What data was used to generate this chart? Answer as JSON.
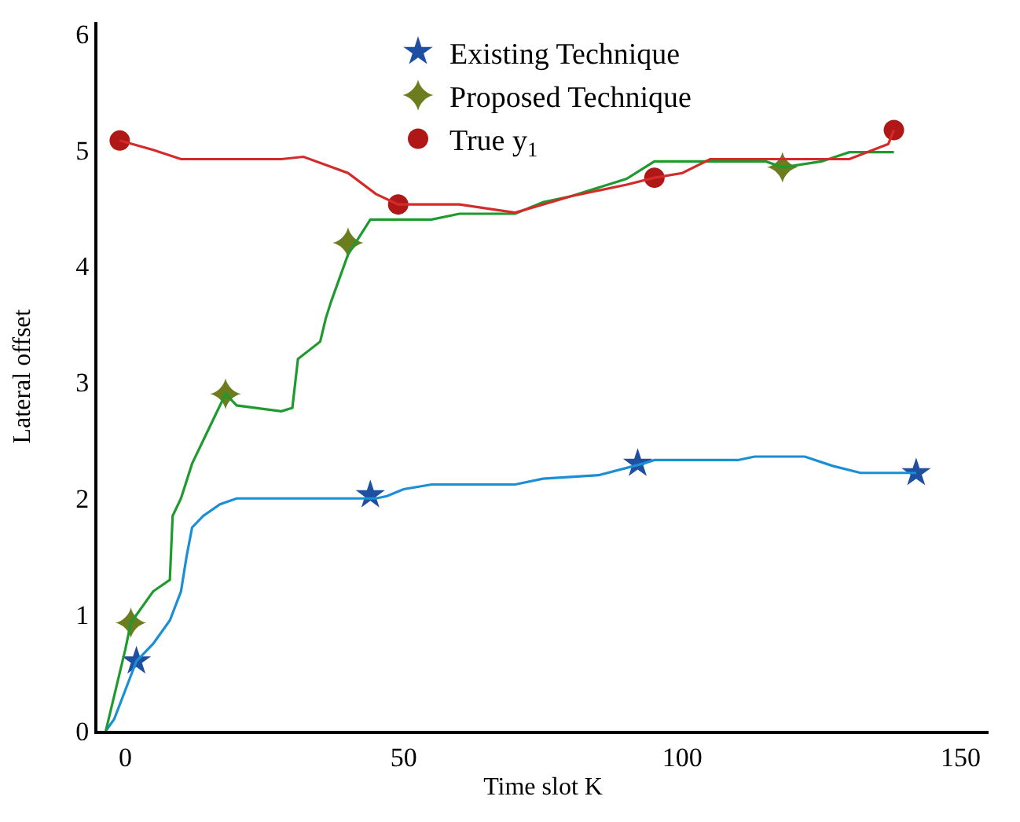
{
  "chart_data": {
    "type": "line",
    "xlabel": "Time slot K",
    "ylabel": "Lateral offset",
    "xlim": [
      -5,
      155
    ],
    "xticks": [
      0,
      50,
      100,
      150
    ],
    "ylim": [
      0,
      6.1
    ],
    "yticks": [
      0,
      1,
      2,
      3,
      4,
      5,
      6
    ],
    "grid": false,
    "legend": "top",
    "line_style": "solid",
    "series": [
      {
        "color": "#1a8fd6",
        "x": [
          -3.5,
          -2,
          0,
          2,
          5,
          8,
          10,
          11,
          12,
          14,
          17,
          20,
          45,
          47,
          50,
          55,
          70,
          75,
          85,
          93,
          95,
          110,
          113,
          122,
          127,
          132,
          142
        ],
        "values": [
          0,
          0.1,
          0.35,
          0.6,
          0.75,
          0.95,
          1.2,
          1.5,
          1.75,
          1.85,
          1.95,
          2.0,
          2.0,
          2.02,
          2.08,
          2.12,
          2.12,
          2.17,
          2.2,
          2.3,
          2.33,
          2.33,
          2.36,
          2.36,
          2.28,
          2.22,
          2.22
        ]
      },
      {
        "color": "#1e9a2e",
        "x": [
          -3.5,
          0,
          1,
          5,
          8,
          8.5,
          10,
          12,
          15,
          18,
          20,
          28,
          30,
          31,
          35,
          36,
          37,
          40,
          42,
          44,
          55,
          60,
          70,
          75,
          80,
          90,
          95,
          115,
          118,
          125,
          130,
          138
        ],
        "values": [
          0,
          0.7,
          0.93,
          1.2,
          1.3,
          1.85,
          2.0,
          2.3,
          2.6,
          2.9,
          2.8,
          2.75,
          2.78,
          3.2,
          3.35,
          3.55,
          3.7,
          4.1,
          4.25,
          4.4,
          4.4,
          4.45,
          4.45,
          4.55,
          4.6,
          4.75,
          4.9,
          4.9,
          4.85,
          4.9,
          4.98,
          4.98
        ]
      },
      {
        "color": "#d42a2a",
        "x": [
          -1,
          5,
          10,
          28,
          32,
          40,
          45,
          49,
          60,
          70,
          80,
          90,
          95,
          100,
          105,
          130,
          137,
          138
        ],
        "values": [
          5.08,
          5.0,
          4.92,
          4.92,
          4.94,
          4.8,
          4.62,
          4.53,
          4.53,
          4.46,
          4.6,
          4.7,
          4.76,
          4.8,
          4.92,
          4.92,
          5.05,
          5.17
        ]
      },
      {
        "type": "scatter",
        "name": "Existing Technique",
        "color": "#1f4fa0",
        "marker": "star",
        "x": [
          2,
          44,
          92,
          142
        ],
        "values": [
          0.6,
          2.03,
          2.3,
          2.22
        ]
      },
      {
        "type": "scatter",
        "name": "Proposed Technique",
        "color": "#6b7d1e",
        "marker": "cross",
        "x": [
          1,
          18,
          40,
          118
        ],
        "values": [
          0.93,
          2.9,
          4.2,
          4.85
        ]
      },
      {
        "type": "scatter",
        "name": "True y$_{1}$",
        "color": "#b01818",
        "marker": "circle",
        "x": [
          -1,
          49,
          95,
          138
        ],
        "values": [
          5.08,
          4.53,
          4.76,
          5.17
        ]
      }
    ]
  }
}
